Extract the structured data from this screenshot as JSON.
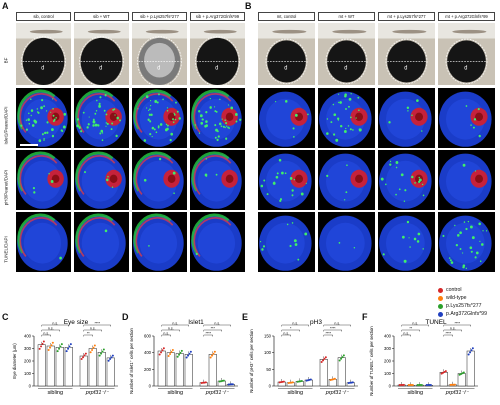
{
  "panel_letters": [
    "A",
    "B",
    "C",
    "D",
    "E",
    "F"
  ],
  "panel_a": {
    "conditions": [
      "sib, control",
      "sib + WT",
      "sib + p.Lys257fs*277",
      "sib + p.Arg372Glnfs*99"
    ]
  },
  "panel_b": {
    "conditions": [
      "mt, control",
      "mt + WT",
      "mt + p.Lys257fs*277",
      "mt + p.Arg372Glnfs*99"
    ]
  },
  "row_labels": [
    "BF",
    "Islet1/Peanut/DAPI",
    "pH3/Peanut/DAPI",
    "TUNEL/DAPI"
  ],
  "bf_diameter_label": "d",
  "legend": [
    {
      "label": "control",
      "color": "#d62728"
    },
    {
      "label": "wild-type",
      "color": "#ff7f0e"
    },
    {
      "label": "p.Lys257fs*277",
      "color": "#2ca02c"
    },
    {
      "label": "p.Arg372Glnfs*99",
      "color": "#1f3fbf"
    }
  ],
  "chart_data": [
    {
      "type": "bar",
      "title": "Eye size",
      "ylabel": "Eye diameter (µm)",
      "ylim": [
        0,
        400
      ],
      "yticks": [
        0,
        100,
        200,
        300,
        400
      ],
      "groups": [
        "sibling",
        "prpf31⁻/⁻"
      ],
      "series": [
        {
          "name": "control",
          "values": [
            330,
            240
          ]
        },
        {
          "name": "wild-type",
          "values": [
            320,
            300
          ]
        },
        {
          "name": "p.Lys257fs*277",
          "values": [
            310,
            270
          ]
        },
        {
          "name": "p.Arg372Glnfs*99",
          "values": [
            310,
            225
          ]
        }
      ],
      "sig_labels": [
        "n.s.",
        "n.s.",
        "n.s.",
        "**",
        "n.s.",
        "****"
      ]
    },
    {
      "type": "bar",
      "title": "Islet1",
      "ylabel": "Number of Islet1⁺ cells per section",
      "ylim": [
        0,
        600
      ],
      "yticks": [
        0,
        200,
        400,
        600
      ],
      "groups": [
        "sibling",
        "prpf31⁻/⁻"
      ],
      "series": [
        {
          "name": "control",
          "values": [
            420,
            40
          ]
        },
        {
          "name": "wild-type",
          "values": [
            400,
            380
          ]
        },
        {
          "name": "p.Lys257fs*277",
          "values": [
            390,
            60
          ]
        },
        {
          "name": "p.Arg372Glnfs*99",
          "values": [
            380,
            20
          ]
        }
      ],
      "sig_labels": [
        "n.s.",
        "n.s.",
        "n.s.",
        "****",
        "***",
        "n.s."
      ]
    },
    {
      "type": "bar",
      "title": "pH3",
      "ylabel": "Number of pH3⁺ cells per section",
      "ylim": [
        0,
        150
      ],
      "yticks": [
        0,
        50,
        100,
        150
      ],
      "groups": [
        "sibling",
        "prpf31⁻/⁻"
      ],
      "series": [
        {
          "name": "control",
          "values": [
            12,
            80
          ]
        },
        {
          "name": "wild-type",
          "values": [
            10,
            20
          ]
        },
        {
          "name": "p.Lys257fs*277",
          "values": [
            14,
            85
          ]
        },
        {
          "name": "p.Arg372Glnfs*99",
          "values": [
            18,
            10
          ]
        }
      ],
      "sig_labels": [
        "n.s.",
        "*",
        "n.s.",
        "****",
        "****",
        "n.s."
      ]
    },
    {
      "type": "bar",
      "title": "TUNEL",
      "ylabel": "Number of TUNEL⁺ cells per section",
      "ylim": [
        0,
        400
      ],
      "yticks": [
        0,
        100,
        200,
        300,
        400
      ],
      "groups": [
        "sibling",
        "prpf31⁻/⁻"
      ],
      "series": [
        {
          "name": "control",
          "values": [
            8,
            110
          ]
        },
        {
          "name": "wild-type",
          "values": [
            6,
            10
          ]
        },
        {
          "name": "p.Lys257fs*277",
          "values": [
            7,
            100
          ]
        },
        {
          "name": "p.Arg372Glnfs*99",
          "values": [
            6,
            280
          ]
        }
      ],
      "sig_labels": [
        "n.s.",
        "**",
        "n.s.",
        "****",
        "n.s.",
        "****"
      ]
    }
  ]
}
